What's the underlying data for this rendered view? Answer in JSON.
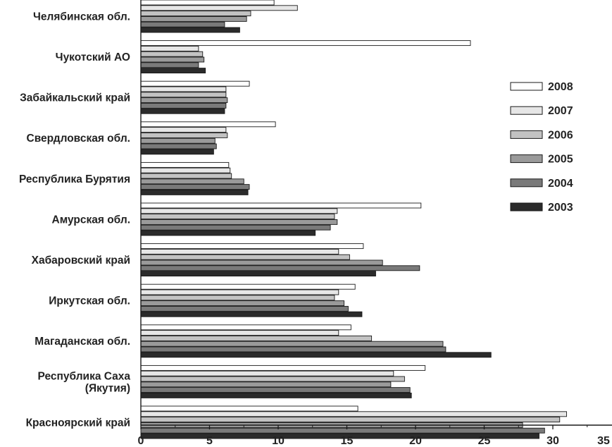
{
  "chart_data": {
    "type": "bar",
    "orientation": "horizontal",
    "title": "",
    "xlabel": "",
    "ylabel": "",
    "xlim": [
      0,
      35
    ],
    "x_ticks": [
      "0",
      "5",
      "10",
      "15",
      "20",
      "25",
      "30",
      "35"
    ],
    "grid": false,
    "legend_position": "right",
    "categories": [
      "Челябинская обл.",
      "Чукотский АО",
      "Забайкальский край",
      "Свердловская обл.",
      "Республика Бурятия",
      "Амурская обл.",
      "Хабаровский край",
      "Иркутская обл.",
      "Магаданская обл.",
      "Республика Саха (Якутия)",
      "Красноярский край"
    ],
    "category_lines": [
      [
        "Челябинская обл."
      ],
      [
        "Чукотский АО"
      ],
      [
        "Забайкальский край"
      ],
      [
        "Свердловская обл."
      ],
      [
        "Республика Бурятия"
      ],
      [
        "Амурская обл."
      ],
      [
        "Хабаровский край"
      ],
      [
        "Иркутская обл."
      ],
      [
        "Магаданская обл."
      ],
      [
        "Республика Саха",
        "(Якутия)"
      ],
      [
        "Красноярский край"
      ]
    ],
    "series": [
      {
        "name": "2008",
        "color": "#ffffff",
        "values": [
          9.7,
          24.0,
          7.9,
          9.8,
          6.4,
          20.4,
          16.2,
          15.6,
          15.3,
          20.7,
          15.8
        ]
      },
      {
        "name": "2007",
        "color": "#e6e6e6",
        "values": [
          11.4,
          4.2,
          6.2,
          6.2,
          6.5,
          14.3,
          14.4,
          14.4,
          14.4,
          18.4,
          31.0
        ]
      },
      {
        "name": "2006",
        "color": "#c2c2c2",
        "values": [
          8.0,
          4.5,
          6.2,
          6.3,
          6.6,
          14.1,
          15.2,
          14.1,
          16.8,
          19.2,
          30.5
        ]
      },
      {
        "name": "2005",
        "color": "#9a9a9a",
        "values": [
          7.7,
          4.6,
          6.3,
          5.4,
          7.5,
          14.3,
          17.6,
          14.8,
          22.0,
          18.2,
          27.8
        ]
      },
      {
        "name": "2004",
        "color": "#7a7a7a",
        "values": [
          6.1,
          4.2,
          6.2,
          5.5,
          7.9,
          13.8,
          20.3,
          15.1,
          22.2,
          19.6,
          29.4
        ]
      },
      {
        "name": "2003",
        "color": "#2b2b2b",
        "values": [
          7.2,
          4.7,
          6.1,
          5.3,
          7.8,
          12.7,
          17.1,
          16.1,
          25.5,
          19.7,
          29.0
        ]
      }
    ],
    "legend_order": [
      "2008",
      "2007",
      "2006",
      "2005",
      "2004",
      "2003"
    ]
  }
}
